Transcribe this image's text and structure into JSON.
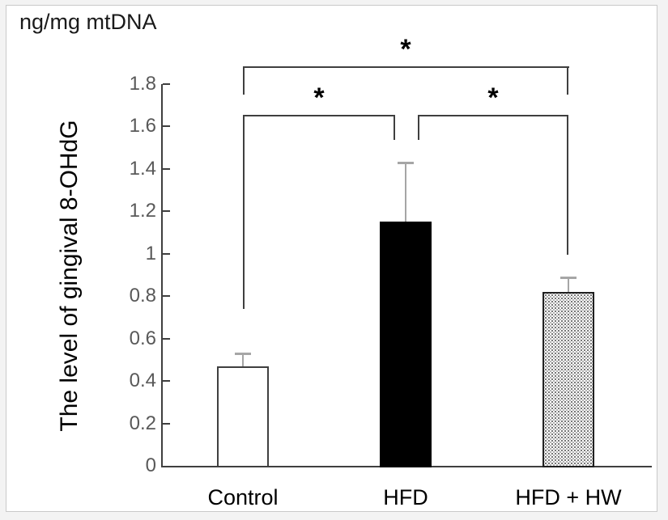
{
  "figure": {
    "background_color": "#f3f3f3",
    "panel_background": "#ffffff",
    "panel_border_color": "#c9c9c9"
  },
  "chart_data": {
    "type": "bar",
    "title": "ng/mg mtDNA",
    "ylabel": "The level of gingival 8-OHdG",
    "xlabel": "",
    "categories": [
      "Control",
      "HFD",
      "HFD + HW"
    ],
    "values": [
      0.47,
      1.15,
      0.82
    ],
    "error_plus": [
      0.06,
      0.28,
      0.07
    ],
    "bar_styles": [
      "white-outline",
      "solid-black",
      "stippled"
    ],
    "ylim": [
      0,
      1.8
    ],
    "ytick_labels": [
      "0",
      "0.2",
      "0.4",
      "0.6",
      "0.8",
      "1",
      "1.2",
      "1.4",
      "1.6",
      "1.8"
    ],
    "grid": "off",
    "legend": "none",
    "significance_brackets": [
      {
        "between": [
          "Control",
          "HFD + HW"
        ],
        "label": "*"
      },
      {
        "between": [
          "Control",
          "HFD"
        ],
        "label": "*"
      },
      {
        "between": [
          "HFD",
          "HFD + HW"
        ],
        "label": "*"
      }
    ],
    "colors": {
      "axis": "#3f3f3f",
      "tick_label": "#595959",
      "text": "#000000",
      "error_bar": "#a6a6a6",
      "bar_black": "#000000",
      "bar_white": "#ffffff"
    }
  }
}
